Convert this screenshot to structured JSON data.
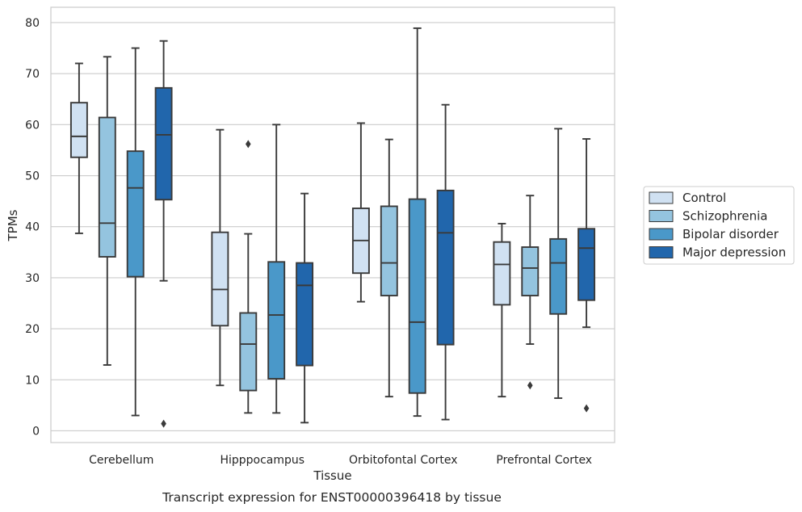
{
  "chart_data": {
    "type": "box",
    "title": "",
    "caption": "Transcript expression for ENST00000396418 by tissue",
    "xlabel": "Tissue",
    "ylabel": "TPMs",
    "ylim": [
      -2.3,
      83.0
    ],
    "yticks": [
      0,
      10,
      20,
      30,
      40,
      50,
      60,
      70,
      80
    ],
    "grid": true,
    "legend_position": "right",
    "categories": [
      "Cerebellum",
      "Hipppocampus",
      "Orbitofontal Cortex",
      "Prefrontal Cortex"
    ],
    "series": [
      {
        "name": "Control",
        "color": "#d0e1f2",
        "boxes": [
          {
            "whisker_low": 38.7,
            "q1": 53.6,
            "median": 57.7,
            "q3": 64.3,
            "whisker_high": 72.0,
            "outliers": []
          },
          {
            "whisker_low": 8.9,
            "q1": 20.6,
            "median": 27.7,
            "q3": 38.9,
            "whisker_high": 59.0,
            "outliers": []
          },
          {
            "whisker_low": 25.3,
            "q1": 30.9,
            "median": 37.3,
            "q3": 43.6,
            "whisker_high": 60.3,
            "outliers": []
          },
          {
            "whisker_low": 6.7,
            "q1": 24.7,
            "median": 32.6,
            "q3": 37.0,
            "whisker_high": 40.6,
            "outliers": []
          }
        ]
      },
      {
        "name": "Schizophrenia",
        "color": "#94c4df",
        "boxes": [
          {
            "whisker_low": 12.9,
            "q1": 34.1,
            "median": 40.7,
            "q3": 61.4,
            "whisker_high": 73.3,
            "outliers": []
          },
          {
            "whisker_low": 3.5,
            "q1": 7.9,
            "median": 17.0,
            "q3": 23.1,
            "whisker_high": 38.6,
            "outliers": [
              56.2
            ]
          },
          {
            "whisker_low": 6.7,
            "q1": 26.5,
            "median": 32.9,
            "q3": 44.0,
            "whisker_high": 57.1,
            "outliers": []
          },
          {
            "whisker_low": 17.0,
            "q1": 26.5,
            "median": 31.9,
            "q3": 36.0,
            "whisker_high": 46.1,
            "outliers": [
              8.9
            ]
          }
        ]
      },
      {
        "name": "Bipolar disorder",
        "color": "#4a98c9",
        "boxes": [
          {
            "whisker_low": 3.0,
            "q1": 30.2,
            "median": 47.6,
            "q3": 54.8,
            "whisker_high": 75.0,
            "outliers": []
          },
          {
            "whisker_low": 3.5,
            "q1": 10.2,
            "median": 22.7,
            "q3": 33.1,
            "whisker_high": 60.0,
            "outliers": []
          },
          {
            "whisker_low": 2.9,
            "q1": 7.4,
            "median": 21.3,
            "q3": 45.4,
            "whisker_high": 78.9,
            "outliers": []
          },
          {
            "whisker_low": 6.4,
            "q1": 22.9,
            "median": 32.9,
            "q3": 37.6,
            "whisker_high": 59.2,
            "outliers": []
          }
        ]
      },
      {
        "name": "Major depression",
        "color": "#2166ac",
        "boxes": [
          {
            "whisker_low": 29.4,
            "q1": 45.3,
            "median": 58.0,
            "q3": 67.2,
            "whisker_high": 76.4,
            "outliers": [
              1.4
            ]
          },
          {
            "whisker_low": 1.6,
            "q1": 12.8,
            "median": 28.5,
            "q3": 32.9,
            "whisker_high": 46.5,
            "outliers": []
          },
          {
            "whisker_low": 2.2,
            "q1": 16.9,
            "median": 38.8,
            "q3": 47.1,
            "whisker_high": 63.9,
            "outliers": []
          },
          {
            "whisker_low": 20.3,
            "q1": 25.6,
            "median": 35.8,
            "q3": 39.6,
            "whisker_high": 57.2,
            "outliers": [
              4.4
            ]
          }
        ]
      }
    ]
  }
}
